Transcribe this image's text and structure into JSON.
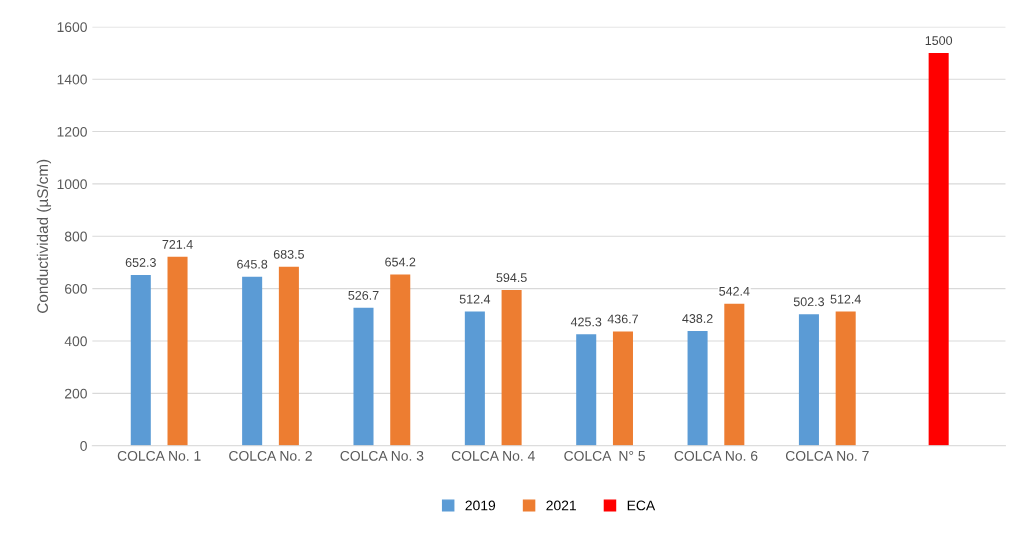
{
  "chart_data": {
    "type": "bar",
    "ylabel": "Conductividad (µS/cm)",
    "categories": [
      "COLCA No. 1",
      "COLCA No. 2",
      "COLCA No. 3",
      "COLCA No. 4",
      "COLCA  N° 5",
      "COLCA No. 6",
      "COLCA No. 7",
      null
    ],
    "series": [
      {
        "name": "2019",
        "color": "#5b9bd5",
        "values": [
          652.3,
          645.8,
          526.7,
          512.4,
          425.3,
          438.2,
          502.3,
          null
        ]
      },
      {
        "name": "2021",
        "color": "#ed7d31",
        "values": [
          721.4,
          683.5,
          654.2,
          594.5,
          436.7,
          542.4,
          512.4,
          null
        ]
      },
      {
        "name": "ECA",
        "color": "#ff0000",
        "values": [
          null,
          null,
          null,
          null,
          null,
          null,
          null,
          1500
        ]
      }
    ],
    "ylim": [
      0,
      1600
    ],
    "yticks": [
      0,
      200,
      400,
      600,
      800,
      1000,
      1200,
      1400,
      1600
    ],
    "grid": "y",
    "legend": "bottom",
    "data_labels": true
  }
}
